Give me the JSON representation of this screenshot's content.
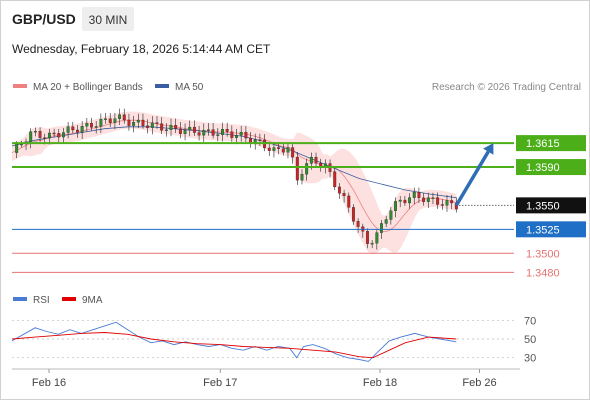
{
  "header": {
    "symbol": "GBP/USD",
    "timeframe": "30 MIN",
    "datetime": "Wednesday, February 18, 2026 5:14:44 AM CET",
    "copyright": "Research © 2026 Trading Central"
  },
  "colors": {
    "ma20": "#f08080",
    "ma50": "#3a5fa0",
    "bollinger_fill": "#fde1e1",
    "support_resistance_green": "#4caf1a",
    "current_price": "#1a1a1a",
    "pivot_blue": "#1f6fc6",
    "weak_red": "#e57373",
    "arrow": "#2f6db5",
    "rsi": "#4a7bd6",
    "rsi_ma": "#e00000",
    "candle_up": "#2e8b2e",
    "candle_down": "#c62828"
  },
  "chart_data": [
    {
      "type": "line",
      "title": "GBP/USD 30 MIN",
      "legend": [
        {
          "name": "MA 20 + Bollinger Bands",
          "color": "#f08080"
        },
        {
          "name": "MA 50",
          "color": "#3a5fa0"
        }
      ],
      "x_ticks": [
        "Feb 16",
        "Feb 17",
        "Feb 18",
        "Feb 26"
      ],
      "ylim": [
        1.347,
        1.366
      ],
      "price_levels": [
        {
          "value": 1.3615,
          "label": "1.3615",
          "kind": "resistance",
          "color": "#4caf1a"
        },
        {
          "value": 1.359,
          "label": "1.3590",
          "kind": "resistance",
          "color": "#4caf1a"
        },
        {
          "value": 1.355,
          "label": "1.3550",
          "kind": "current",
          "color": "#1a1a1a"
        },
        {
          "value": 1.3525,
          "label": "1.3525",
          "kind": "pivot",
          "color": "#1f6fc6"
        },
        {
          "value": 1.35,
          "label": "1.3500",
          "kind": "support",
          "color": "#e57373"
        },
        {
          "value": 1.348,
          "label": "1.3480",
          "kind": "support",
          "color": "#e57373"
        }
      ],
      "price_path": [
        [
          0,
          1.3605
        ],
        [
          0.8,
          1.3625
        ],
        [
          1.6,
          1.3622
        ],
        [
          2.4,
          1.3628
        ],
        [
          3.2,
          1.3632
        ],
        [
          4,
          1.3638
        ],
        [
          4.5,
          1.3642
        ],
        [
          5.2,
          1.3636
        ],
        [
          6,
          1.3634
        ],
        [
          6.8,
          1.363
        ],
        [
          7.6,
          1.3628
        ],
        [
          8.4,
          1.3626
        ],
        [
          9.2,
          1.3626
        ],
        [
          10,
          1.3622
        ],
        [
          10.8,
          1.3614
        ],
        [
          11.4,
          1.3606
        ],
        [
          12,
          1.3612
        ],
        [
          12.3,
          1.3575
        ],
        [
          12.6,
          1.359
        ],
        [
          13,
          1.3598
        ],
        [
          13.6,
          1.359
        ],
        [
          14,
          1.357
        ],
        [
          14.5,
          1.355
        ],
        [
          15,
          1.3525
        ],
        [
          15.4,
          1.351
        ],
        [
          15.8,
          1.352
        ],
        [
          16.3,
          1.3545
        ],
        [
          16.8,
          1.3555
        ],
        [
          17.4,
          1.356
        ],
        [
          18,
          1.3556
        ],
        [
          18.5,
          1.3553
        ],
        [
          19.2,
          1.355
        ]
      ],
      "ma50_path": [
        [
          0,
          1.3612
        ],
        [
          1,
          1.3618
        ],
        [
          2,
          1.3622
        ],
        [
          3,
          1.3626
        ],
        [
          4,
          1.363
        ],
        [
          5,
          1.3632
        ],
        [
          6,
          1.3632
        ],
        [
          7,
          1.363
        ],
        [
          8,
          1.3628
        ],
        [
          9,
          1.3625
        ],
        [
          10,
          1.3622
        ],
        [
          11,
          1.3616
        ],
        [
          12,
          1.3608
        ],
        [
          13,
          1.3598
        ],
        [
          14,
          1.3588
        ],
        [
          15,
          1.3578
        ],
        [
          16,
          1.3572
        ],
        [
          17,
          1.3566
        ],
        [
          18,
          1.3562
        ],
        [
          19.2,
          1.3558
        ]
      ],
      "forecast_arrow": {
        "from": [
          19.2,
          1.355
        ],
        "to": [
          20.8,
          1.3615
        ]
      }
    },
    {
      "type": "line",
      "title": "RSI",
      "legend": [
        {
          "name": "RSI",
          "color": "#4a7bd6"
        },
        {
          "name": "9MA",
          "color": "#e00000"
        }
      ],
      "y_ticks": [
        70,
        50,
        30
      ],
      "ylim": [
        20,
        80
      ],
      "series": [
        {
          "name": "RSI",
          "points": [
            [
              0,
              48
            ],
            [
              0.5,
              55
            ],
            [
              1,
              62
            ],
            [
              1.5,
              58
            ],
            [
              2,
              55
            ],
            [
              2.5,
              60
            ],
            [
              3,
              56
            ],
            [
              3.5,
              60
            ],
            [
              4,
              64
            ],
            [
              4.5,
              68
            ],
            [
              5,
              60
            ],
            [
              5.5,
              52
            ],
            [
              6,
              46
            ],
            [
              6.5,
              48
            ],
            [
              7,
              44
            ],
            [
              7.5,
              47
            ],
            [
              8,
              44
            ],
            [
              8.5,
              42
            ],
            [
              9,
              44
            ],
            [
              9.5,
              40
            ],
            [
              10,
              38
            ],
            [
              10.5,
              42
            ],
            [
              11,
              38
            ],
            [
              11.5,
              42
            ],
            [
              12,
              40
            ],
            [
              12.3,
              30
            ],
            [
              12.6,
              42
            ],
            [
              13,
              44
            ],
            [
              13.5,
              40
            ],
            [
              14,
              34
            ],
            [
              14.5,
              30
            ],
            [
              15,
              28
            ],
            [
              15.4,
              26
            ],
            [
              15.8,
              36
            ],
            [
              16.3,
              48
            ],
            [
              16.8,
              52
            ],
            [
              17.4,
              56
            ],
            [
              18,
              52
            ],
            [
              18.5,
              50
            ],
            [
              19.2,
              47
            ]
          ]
        },
        {
          "name": "9MA",
          "points": [
            [
              0,
              50
            ],
            [
              1,
              52
            ],
            [
              2,
              54
            ],
            [
              3,
              56
            ],
            [
              4,
              57
            ],
            [
              5,
              55
            ],
            [
              6,
              50
            ],
            [
              7,
              47
            ],
            [
              8,
              45
            ],
            [
              9,
              44
            ],
            [
              10,
              42
            ],
            [
              11,
              41
            ],
            [
              12,
              40
            ],
            [
              13,
              38
            ],
            [
              14,
              36
            ],
            [
              15,
              31
            ],
            [
              15.6,
              30
            ],
            [
              16.3,
              38
            ],
            [
              17,
              46
            ],
            [
              18,
              52
            ],
            [
              19.2,
              50
            ]
          ]
        }
      ]
    }
  ]
}
